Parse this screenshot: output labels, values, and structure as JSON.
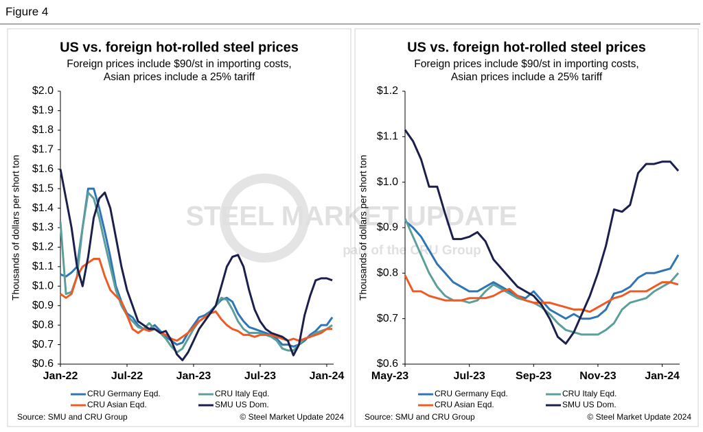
{
  "figure_label": "Figure 4",
  "watermark": {
    "title": "STEEL MARKET UPDATE",
    "subtitle": "part of the CRU Group"
  },
  "chart_data": [
    {
      "type": "line",
      "title": "US vs. foreign hot-rolled steel prices",
      "subtitle": [
        "Foreign prices include $90/st in importing costs,",
        "Asian prices include a 25% tariff"
      ],
      "ylabel": "Thousands of dollars per short ton",
      "source": "Source: SMU and CRU Group",
      "copyright": "© Steel Market Update 2024",
      "categories": [
        "Jan-22",
        null,
        null,
        null,
        null,
        null,
        null,
        null,
        null,
        null,
        null,
        null,
        "Jul-22",
        null,
        null,
        null,
        null,
        null,
        null,
        null,
        null,
        null,
        null,
        null,
        "Jan-23",
        null,
        null,
        null,
        null,
        null,
        null,
        null,
        null,
        null,
        null,
        null,
        "Jul-23",
        null,
        null,
        null,
        null,
        null,
        null,
        null,
        null,
        null,
        null,
        null,
        "Jan-24",
        null
      ],
      "ylim": [
        0.6,
        2.0
      ],
      "yticks": [
        {
          "value": 0.6,
          "label": "$0.6"
        },
        {
          "value": 0.7,
          "label": "$0.7"
        },
        {
          "value": 0.8,
          "label": "$0.8"
        },
        {
          "value": 0.9,
          "label": "$0.9"
        },
        {
          "value": 1.0,
          "label": "$1.0"
        },
        {
          "value": 1.1,
          "label": "$1.1"
        },
        {
          "value": 1.2,
          "label": "$1.2"
        },
        {
          "value": 1.3,
          "label": "$1.3"
        },
        {
          "value": 1.4,
          "label": "$1.4"
        },
        {
          "value": 1.5,
          "label": "$1.5"
        },
        {
          "value": 1.6,
          "label": "$1.6"
        },
        {
          "value": 1.7,
          "label": "$1.7"
        },
        {
          "value": 1.8,
          "label": "$1.8"
        },
        {
          "value": 1.9,
          "label": "$1.9"
        },
        {
          "value": 2.0,
          "label": "$2.0"
        }
      ],
      "series": [
        {
          "name": "CRU Germany Eqd.",
          "color": "#2E75B6",
          "values": [
            1.06,
            1.05,
            1.07,
            1.1,
            1.3,
            1.5,
            1.5,
            1.4,
            1.28,
            1.15,
            1.0,
            0.92,
            0.86,
            0.84,
            0.8,
            0.78,
            0.78,
            0.8,
            0.77,
            0.74,
            0.72,
            0.7,
            0.71,
            0.76,
            0.8,
            0.84,
            0.85,
            0.87,
            0.9,
            0.93,
            0.94,
            0.92,
            0.86,
            0.82,
            0.79,
            0.78,
            0.77,
            0.76,
            0.75,
            0.73,
            0.7,
            0.7,
            0.69,
            0.7,
            0.72,
            0.75,
            0.77,
            0.8,
            0.8,
            0.84
          ]
        },
        {
          "name": "CRU Italy Eqd.",
          "color": "#5B9E9A",
          "values": [
            1.33,
            0.96,
            0.97,
            1.05,
            1.3,
            1.48,
            1.45,
            1.35,
            1.22,
            1.1,
            0.98,
            0.9,
            0.85,
            0.82,
            0.79,
            0.78,
            0.81,
            0.78,
            0.76,
            0.73,
            0.69,
            0.66,
            0.68,
            0.73,
            0.78,
            0.82,
            0.84,
            0.86,
            0.9,
            0.94,
            0.93,
            0.88,
            0.82,
            0.78,
            0.76,
            0.76,
            0.76,
            0.75,
            0.74,
            0.72,
            0.68,
            0.67,
            0.67,
            0.7,
            0.73,
            0.74,
            0.76,
            0.77,
            0.78,
            0.8
          ]
        },
        {
          "name": "CRU Asian Eqd.",
          "color": "#F05A22",
          "values": [
            0.96,
            0.94,
            0.96,
            1.05,
            1.1,
            1.12,
            1.14,
            1.14,
            1.05,
            0.98,
            0.95,
            0.92,
            0.85,
            0.78,
            0.76,
            0.78,
            0.77,
            0.78,
            0.76,
            0.75,
            0.73,
            0.72,
            0.74,
            0.76,
            0.79,
            0.82,
            0.84,
            0.86,
            0.87,
            0.83,
            0.8,
            0.78,
            0.77,
            0.75,
            0.75,
            0.74,
            0.75,
            0.75,
            0.75,
            0.74,
            0.73,
            0.72,
            0.73,
            0.72,
            0.73,
            0.74,
            0.75,
            0.76,
            0.78,
            0.78
          ]
        },
        {
          "name": "SMU US Dom.",
          "color": "#1B1F4B",
          "values": [
            1.6,
            1.45,
            1.3,
            1.1,
            1.0,
            1.15,
            1.35,
            1.45,
            1.48,
            1.4,
            1.25,
            1.1,
            0.98,
            0.9,
            0.82,
            0.8,
            0.78,
            0.78,
            0.76,
            0.77,
            0.72,
            0.65,
            0.62,
            0.66,
            0.72,
            0.78,
            0.82,
            0.86,
            0.9,
            1.0,
            1.1,
            1.15,
            1.16,
            1.1,
            0.98,
            0.88,
            0.82,
            0.78,
            0.76,
            0.75,
            0.74,
            0.72,
            0.645,
            0.7,
            0.85,
            0.95,
            1.03,
            1.04,
            1.04,
            1.03
          ]
        }
      ]
    },
    {
      "type": "line",
      "title": "US vs. foreign hot-rolled steel prices",
      "subtitle": [
        "Foreign prices include $90/st in importing costs,",
        "Asian prices include a 25% tariff"
      ],
      "ylabel": "Thousands of dollars per short ton",
      "source": "Source: SMU and CRU Group",
      "copyright": "© Steel Market Update 2024",
      "categories": [
        "May-23",
        null,
        null,
        null,
        null,
        null,
        null,
        null,
        "Jul-23",
        null,
        null,
        null,
        null,
        null,
        null,
        null,
        "Sep-23",
        null,
        null,
        null,
        null,
        null,
        null,
        null,
        "Nov-23",
        null,
        null,
        null,
        null,
        null,
        null,
        null,
        "Jan-24",
        null,
        null
      ],
      "ylim": [
        0.6,
        1.2
      ],
      "yticks": [
        {
          "value": 0.6,
          "label": "$0.6"
        },
        {
          "value": 0.7,
          "label": "$0.7"
        },
        {
          "value": 0.8,
          "label": "$0.8"
        },
        {
          "value": 0.9,
          "label": "$0.9"
        },
        {
          "value": 1.0,
          "label": "$1.0"
        },
        {
          "value": 1.1,
          "label": "$1.1"
        },
        {
          "value": 1.2,
          "label": "$1.2"
        }
      ],
      "series": [
        {
          "name": "CRU Germany Eqd.",
          "color": "#2E75B6",
          "values": [
            0.915,
            0.9,
            0.88,
            0.85,
            0.82,
            0.8,
            0.78,
            0.77,
            0.76,
            0.76,
            0.77,
            0.78,
            0.77,
            0.76,
            0.75,
            0.745,
            0.76,
            0.74,
            0.72,
            0.71,
            0.7,
            0.71,
            0.7,
            0.7,
            0.705,
            0.72,
            0.755,
            0.76,
            0.77,
            0.79,
            0.8,
            0.8,
            0.805,
            0.81,
            0.84
          ]
        },
        {
          "name": "CRU Italy Eqd.",
          "color": "#5B9E9A",
          "values": [
            0.92,
            0.88,
            0.84,
            0.8,
            0.77,
            0.75,
            0.74,
            0.74,
            0.735,
            0.74,
            0.76,
            0.775,
            0.765,
            0.755,
            0.745,
            0.74,
            0.735,
            0.725,
            0.71,
            0.69,
            0.675,
            0.67,
            0.665,
            0.665,
            0.665,
            0.675,
            0.69,
            0.72,
            0.735,
            0.74,
            0.745,
            0.76,
            0.77,
            0.78,
            0.8
          ]
        },
        {
          "name": "CRU Asian Eqd.",
          "color": "#F05A22",
          "values": [
            0.795,
            0.76,
            0.76,
            0.75,
            0.745,
            0.74,
            0.74,
            0.74,
            0.745,
            0.745,
            0.745,
            0.75,
            0.76,
            0.765,
            0.75,
            0.74,
            0.735,
            0.735,
            0.735,
            0.73,
            0.725,
            0.72,
            0.72,
            0.715,
            0.725,
            0.735,
            0.745,
            0.75,
            0.76,
            0.76,
            0.76,
            0.77,
            0.78,
            0.78,
            0.775
          ]
        },
        {
          "name": "SMU US Dom.",
          "color": "#1B1F4B",
          "values": [
            1.115,
            1.09,
            1.05,
            0.99,
            0.99,
            0.93,
            0.875,
            0.875,
            0.88,
            0.89,
            0.87,
            0.83,
            0.81,
            0.79,
            0.77,
            0.76,
            0.75,
            0.73,
            0.7,
            0.66,
            0.645,
            0.67,
            0.71,
            0.75,
            0.8,
            0.86,
            0.94,
            0.935,
            0.95,
            1.02,
            1.04,
            1.04,
            1.045,
            1.045,
            1.025
          ]
        }
      ]
    }
  ]
}
